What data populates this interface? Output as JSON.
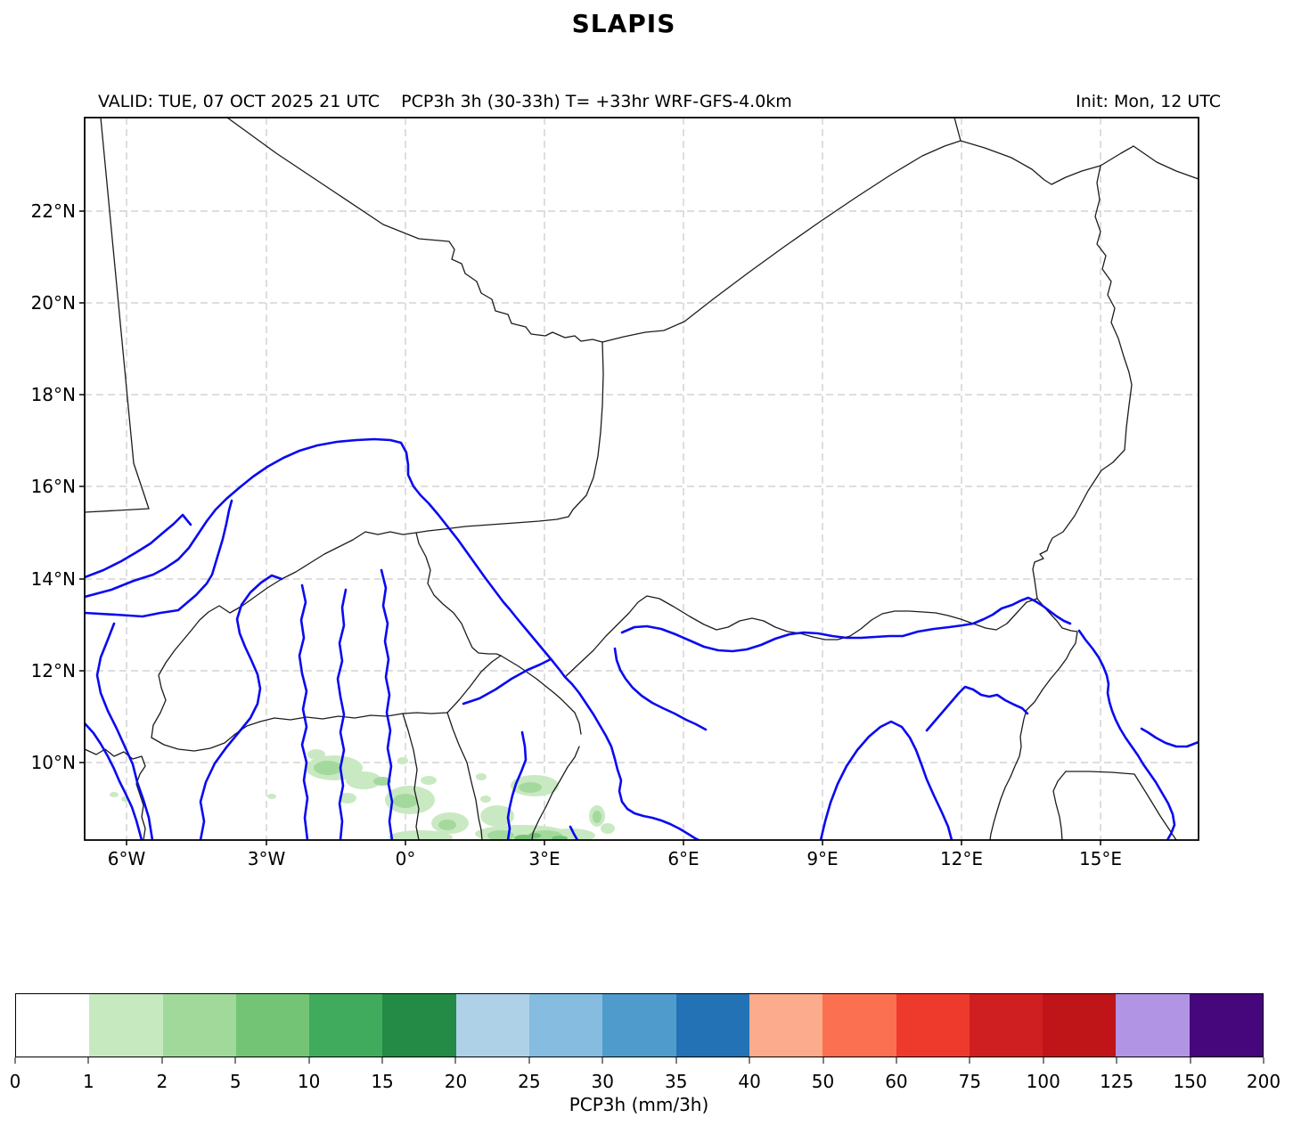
{
  "page": {
    "title": "SLAPIS"
  },
  "header": {
    "valid": "VALID: TUE, 07 OCT 2025 21 UTC",
    "product": "PCP3h 3h (30-33h) T= +33hr WRF-GFS-4.0km",
    "init": "Init: Mon, 12 UTC"
  },
  "map": {
    "y_tick_labels": [
      "22°N",
      "20°N",
      "18°N",
      "16°N",
      "14°N",
      "12°N",
      "10°N"
    ],
    "x_tick_labels": [
      "6°W",
      "3°W",
      "0°",
      "3°E",
      "6°E",
      "9°E",
      "12°E",
      "15°E"
    ],
    "legend": {
      "river_color": "#0a0af0",
      "border_color": "#1c1c1c",
      "grid_color": "#c9c9c9",
      "frame_color": "#000000",
      "precip_shades": {
        "light": "#c9e9c2",
        "medium": "#a3d99d",
        "dark": "#74c476"
      }
    }
  },
  "colorbar": {
    "label": "PCP3h (mm/3h)",
    "tick_labels": [
      "0",
      "1",
      "2",
      "5",
      "10",
      "15",
      "20",
      "25",
      "30",
      "35",
      "40",
      "50",
      "60",
      "75",
      "100",
      "125",
      "150",
      "200"
    ],
    "segment_colors": [
      "#ffffff",
      "#c7e9c0",
      "#a1d99b",
      "#74c476",
      "#41ab5d",
      "#238b45",
      "#aed1e8",
      "#85bcdf",
      "#4f9bcb",
      "#2272b5",
      "#fcab8c",
      "#fb7050",
      "#ee3a2c",
      "#d01f21",
      "#bf1418",
      "#b195e4",
      "#46077d"
    ]
  }
}
